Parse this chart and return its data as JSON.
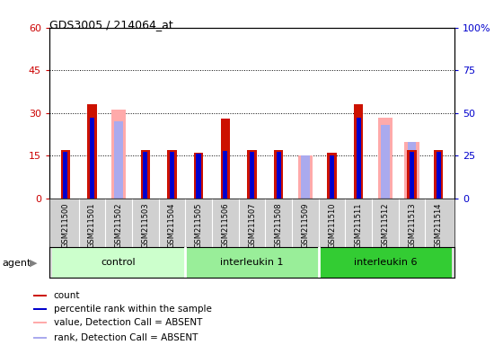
{
  "title": "GDS3005 / 214064_at",
  "samples": [
    "GSM211500",
    "GSM211501",
    "GSM211502",
    "GSM211503",
    "GSM211504",
    "GSM211505",
    "GSM211506",
    "GSM211507",
    "GSM211508",
    "GSM211509",
    "GSM211510",
    "GSM211511",
    "GSM211512",
    "GSM211513",
    "GSM211514"
  ],
  "groups": [
    {
      "label": "control",
      "color": "#ccffcc",
      "indices": [
        0,
        1,
        2,
        3,
        4
      ]
    },
    {
      "label": "interleukin 1",
      "color": "#99ee99",
      "indices": [
        5,
        6,
        7,
        8,
        9
      ]
    },
    {
      "label": "interleukin 6",
      "color": "#33cc33",
      "indices": [
        10,
        11,
        12,
        13,
        14
      ]
    }
  ],
  "count_values": [
    17,
    33,
    null,
    17,
    17,
    16,
    28,
    17,
    17,
    null,
    16,
    33,
    null,
    17,
    17
  ],
  "rank_values": [
    27,
    47,
    null,
    27,
    27,
    26,
    28,
    27,
    27,
    null,
    25,
    47,
    null,
    27,
    27
  ],
  "absent_value": [
    null,
    null,
    52,
    null,
    null,
    null,
    null,
    null,
    null,
    25,
    null,
    null,
    47,
    33,
    null
  ],
  "absent_rank": [
    null,
    null,
    45,
    null,
    null,
    null,
    null,
    null,
    null,
    25,
    null,
    null,
    43,
    33,
    null
  ],
  "ylim_left": [
    0,
    60
  ],
  "ylim_right": [
    0,
    100
  ],
  "yticks_left": [
    0,
    15,
    30,
    45,
    60
  ],
  "yticks_right": [
    0,
    25,
    50,
    75,
    100
  ],
  "count_color": "#cc1100",
  "rank_color": "#0000cc",
  "absent_value_color": "#ffaaaa",
  "absent_rank_color": "#aaaaee",
  "left_ytick_color": "#cc0000",
  "right_ytick_color": "#0000cc",
  "xticklabel_bg": "#d0d0d0"
}
